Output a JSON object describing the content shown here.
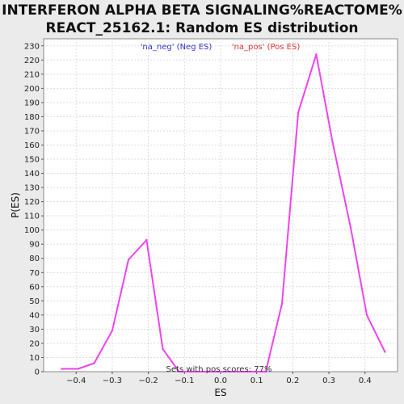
{
  "chart_data": {
    "type": "line",
    "title_lines": [
      "INTERFERON ALPHA BETA SIGNALING%REACTOME%",
      "REACT_25162.1: Random ES distribution"
    ],
    "xlabel": "ES",
    "ylabel": "P(ES)",
    "xlim": [
      -0.49,
      0.49
    ],
    "ylim": [
      0,
      235
    ],
    "x_ticks": [
      -0.4,
      -0.3,
      -0.2,
      -0.1,
      0.0,
      0.1,
      0.2,
      0.3,
      0.4
    ],
    "x_tick_labels": [
      "−0.4",
      "−0.3",
      "−0.2",
      "−0.1",
      "0.0",
      "0.1",
      "0.2",
      "0.3",
      "0.4"
    ],
    "y_ticks": [
      0,
      10,
      20,
      30,
      40,
      50,
      60,
      70,
      80,
      90,
      100,
      110,
      120,
      130,
      140,
      150,
      160,
      170,
      180,
      190,
      200,
      210,
      220,
      230
    ],
    "grid": true,
    "series_color": "#ee44ee",
    "series": [
      {
        "x": [
          -0.44,
          -0.395,
          -0.35,
          -0.3,
          -0.255,
          -0.205,
          -0.16,
          -0.115,
          -0.07,
          -0.02,
          0.025,
          0.075,
          0.125,
          0.17,
          0.215,
          0.265,
          0.31,
          0.36,
          0.405,
          0.455
        ],
        "y": [
          2,
          2,
          6,
          29,
          79,
          93,
          16,
          0,
          0,
          0,
          0,
          0,
          0,
          48,
          183,
          224,
          162,
          102,
          40,
          14
        ]
      }
    ],
    "legend": [
      {
        "label": "'na_neg' (Neg ES)",
        "color": "#3333cc"
      },
      {
        "label": "'na_pos' (Pos ES)",
        "color": "#dd3333"
      }
    ],
    "legend_placement": "top-center",
    "annotation": "Sets with pos scores: 77%"
  }
}
